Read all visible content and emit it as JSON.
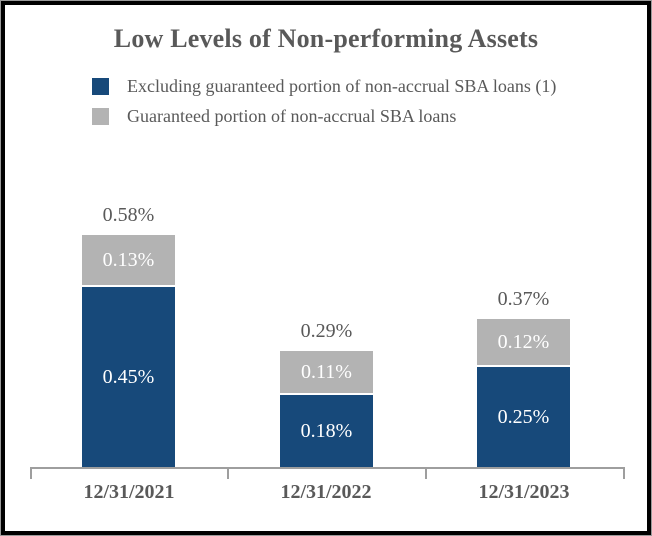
{
  "title": "Low Levels of Non-performing Assets",
  "legend": [
    {
      "label": "Excluding guaranteed portion of non-accrual SBA loans (1)",
      "color": "#17497a"
    },
    {
      "label": "Guaranteed portion of non-accrual SBA loans",
      "color": "#b3b3b3"
    }
  ],
  "colors": {
    "bar_blue": "#17497a",
    "bar_gray": "#b3b3b3",
    "text_gray": "#595959",
    "axis_gray": "#9e9e9e",
    "segment_label_white": "#ffffff",
    "frame_black": "#000000"
  },
  "chart_data": {
    "type": "bar",
    "stacked": true,
    "title": "Low Levels of Non-performing Assets",
    "categories": [
      "12/31/2021",
      "12/31/2022",
      "12/31/2023"
    ],
    "series": [
      {
        "name": "Excluding guaranteed portion of non-accrual SBA loans (1)",
        "color": "#17497a",
        "values": [
          0.45,
          0.18,
          0.25
        ],
        "labels": [
          "0.45%",
          "0.18%",
          "0.25%"
        ]
      },
      {
        "name": "Guaranteed portion of non-accrual SBA loans",
        "color": "#b3b3b3",
        "values": [
          0.13,
          0.11,
          0.12
        ],
        "labels": [
          "0.13%",
          "0.11%",
          "0.12%"
        ]
      }
    ],
    "totals": [
      0.58,
      0.29,
      0.37
    ],
    "total_labels": [
      "0.58%",
      "0.29%",
      "0.37%"
    ],
    "unit": "%",
    "ylim": [
      0,
      0.6
    ],
    "grid": false,
    "legend_position": "top-left",
    "value_labels": "inside-segments-and-total-above"
  }
}
